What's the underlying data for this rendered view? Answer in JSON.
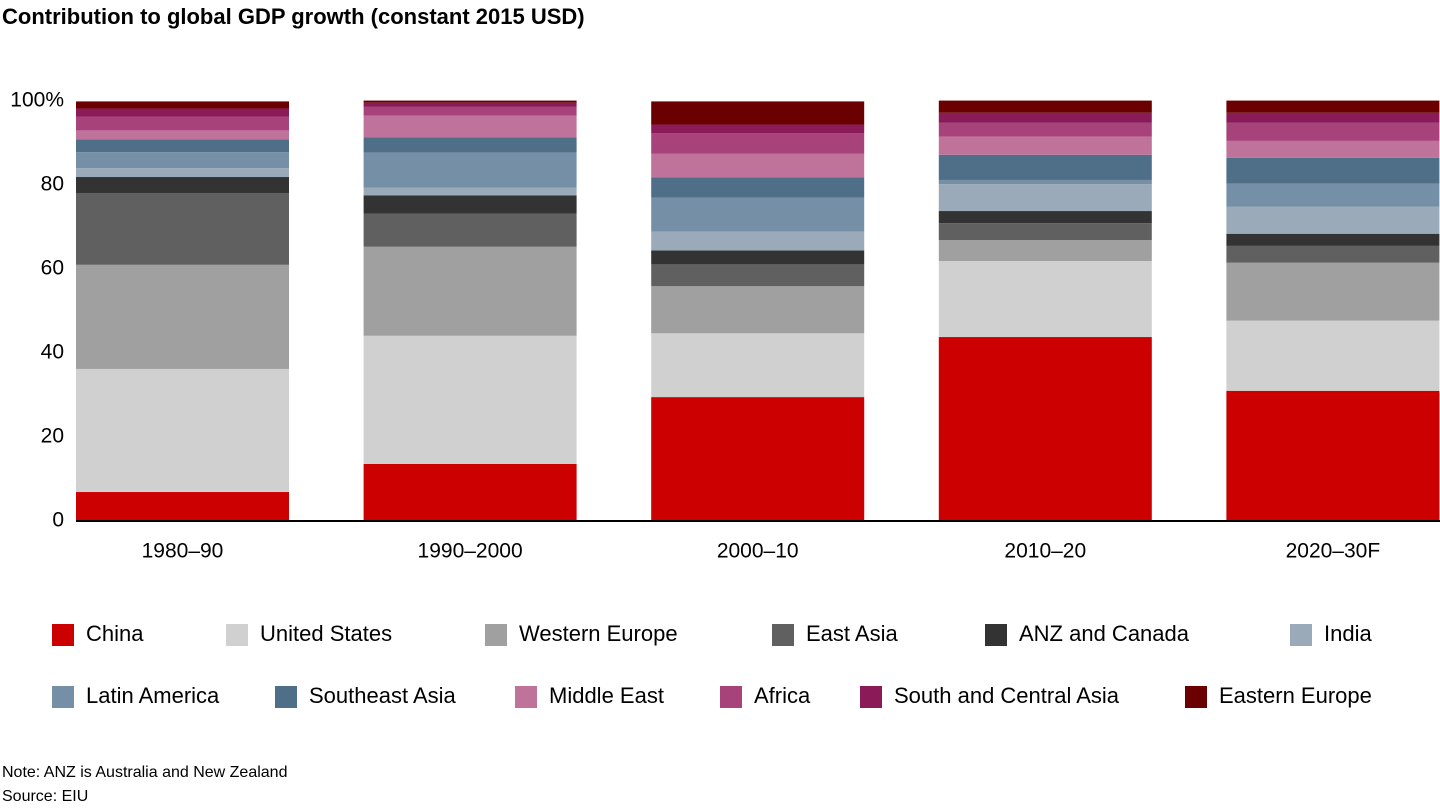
{
  "chart_data": {
    "type": "stacked_bar",
    "title": "Contribution to global GDP growth (constant 2015 USD)",
    "categories": [
      "1980–90",
      "1990–2000",
      "2000–10",
      "2010–20",
      "2020–30F"
    ],
    "series": [
      {
        "name": "China",
        "color": "#cc0000",
        "values": [
          6.9,
          13.6,
          29.5,
          43.8,
          31.0
        ]
      },
      {
        "name": "United States",
        "color": "#d0d0d0",
        "values": [
          29.3,
          30.5,
          15.2,
          18.1,
          16.7
        ]
      },
      {
        "name": "Western Europe",
        "color": "#a0a0a0",
        "values": [
          24.8,
          21.2,
          11.2,
          5.0,
          13.8
        ]
      },
      {
        "name": "East Asia",
        "color": "#606060",
        "values": [
          17.1,
          7.9,
          5.2,
          4.0,
          4.0
        ]
      },
      {
        "name": "ANZ and Canada",
        "color": "#333333",
        "values": [
          3.8,
          4.3,
          3.3,
          2.9,
          2.9
        ]
      },
      {
        "name": "India",
        "color": "#9aaab8",
        "values": [
          2.1,
          1.9,
          4.5,
          6.4,
          6.4
        ]
      },
      {
        "name": "Latin America",
        "color": "#7590a6",
        "values": [
          3.8,
          8.3,
          8.1,
          1.0,
          5.5
        ]
      },
      {
        "name": "Southeast Asia",
        "color": "#4f6e88",
        "values": [
          3.1,
          3.6,
          4.8,
          6.0,
          6.2
        ]
      },
      {
        "name": "Middle East",
        "color": "#c0739a",
        "values": [
          2.1,
          5.2,
          5.7,
          4.3,
          4.0
        ]
      },
      {
        "name": "Africa",
        "color": "#a8427a",
        "values": [
          3.3,
          2.1,
          4.8,
          3.3,
          4.3
        ]
      },
      {
        "name": "South and Central Asia",
        "color": "#8a1a58",
        "values": [
          1.9,
          1.0,
          2.1,
          2.4,
          2.4
        ]
      },
      {
        "name": "Eastern Europe",
        "color": "#6a0000",
        "values": [
          1.7,
          0.5,
          5.5,
          2.9,
          2.9
        ]
      }
    ],
    "ylim": [
      0,
      100
    ],
    "yticks": [
      0,
      20,
      40,
      60,
      80,
      {
        "value": 100,
        "label": "100%"
      }
    ],
    "grid": false,
    "notes": [
      "Note: ANZ is Australia and New Zealand",
      "Source: EIU"
    ]
  }
}
